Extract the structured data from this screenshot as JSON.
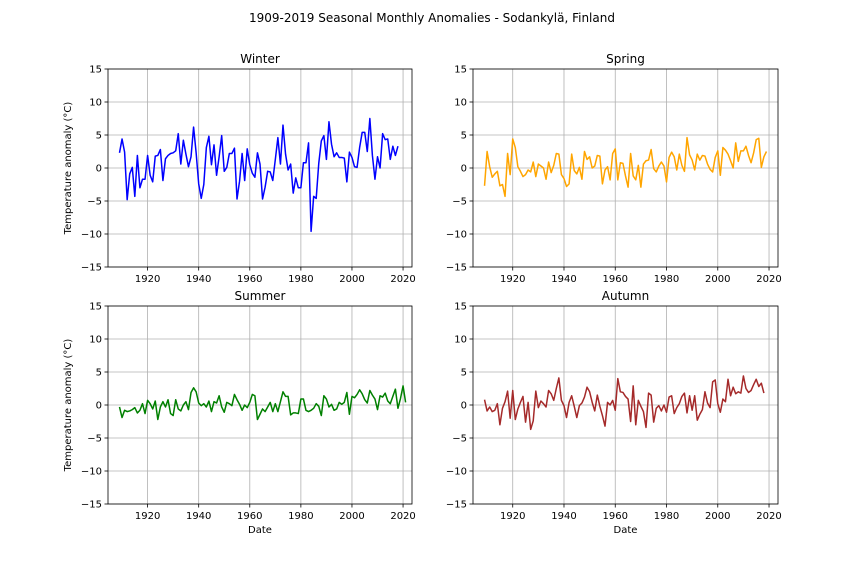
{
  "figure": {
    "suptitle": "1909-2019 Seasonal Monthly Anomalies - Sodankylä, Finland"
  },
  "chart_data": [
    {
      "type": "line",
      "title": "Winter",
      "xlabel": "",
      "ylabel": "Temperature anomaly (°C)",
      "xlim": [
        1904.5,
        2023.5
      ],
      "ylim": [
        -15,
        15
      ],
      "xticks": [
        1920,
        1940,
        1960,
        1980,
        2000,
        2020
      ],
      "yticks": [
        -15,
        -10,
        -5,
        0,
        5,
        10,
        15
      ],
      "grid": true,
      "color": "#0000ff",
      "x_start": 1909,
      "x_step": 1,
      "values": [
        2.3,
        4.4,
        2.4,
        -4.8,
        -0.9,
        0.1,
        -4.3,
        1.9,
        -3.0,
        -1.7,
        -1.7,
        1.9,
        -1.1,
        -2.1,
        1.8,
        1.9,
        2.8,
        -1.9,
        1.4,
        1.9,
        2.2,
        2.3,
        2.6,
        5.2,
        0.6,
        4.2,
        2.1,
        0.2,
        1.7,
        6.2,
        2.3,
        -2.4,
        -4.6,
        -2.5,
        3.1,
        4.8,
        0.5,
        3.5,
        -1.1,
        1.7,
        4.9,
        -0.5,
        0.1,
        2.2,
        2.2,
        3.0,
        -4.7,
        -2.0,
        2.2,
        -1.9,
        2.9,
        0.5,
        -0.8,
        -1.4,
        2.3,
        0.6,
        -4.7,
        -2.9,
        -0.5,
        -0.6,
        -1.9,
        1.3,
        4.6,
        0.6,
        6.5,
        2.1,
        -0.3,
        0.6,
        -3.8,
        -1.5,
        -3.0,
        -3.0,
        0.8,
        0.8,
        3.8,
        -9.6,
        -4.3,
        -4.6,
        0.7,
        4.1,
        4.9,
        1.3,
        7.0,
        3.6,
        1.7,
        2.3,
        1.6,
        1.6,
        1.5,
        -2.1,
        2.4,
        1.6,
        0.2,
        0.1,
        3.1,
        5.4,
        5.4,
        2.5,
        7.5,
        1.9,
        -1.7,
        1.7,
        0.0,
        5.2,
        4.3,
        4.4,
        1.3,
        3.3,
        1.9,
        3.3
      ]
    },
    {
      "type": "line",
      "title": "Spring",
      "xlabel": "",
      "ylabel": "",
      "xlim": [
        1904.5,
        2023.5
      ],
      "ylim": [
        -15,
        15
      ],
      "xticks": [
        1920,
        1940,
        1960,
        1980,
        2000,
        2020
      ],
      "yticks": [
        -15,
        -10,
        -5,
        0,
        5,
        10,
        15
      ],
      "grid": true,
      "color": "#ffa500",
      "x_start": 1909,
      "x_step": 1,
      "values": [
        -2.7,
        2.5,
        0.2,
        -1.4,
        -0.9,
        -0.5,
        -2.7,
        -2.5,
        -4.3,
        2.2,
        -1.0,
        4.4,
        3.1,
        0.2,
        -0.5,
        -1.3,
        -1.0,
        -0.3,
        -0.6,
        0.9,
        -1.3,
        0.6,
        0.3,
        0.0,
        -1.7,
        0.9,
        -0.7,
        0.4,
        2.2,
        2.1,
        -1.0,
        -1.6,
        -2.8,
        -2.4,
        2.1,
        -0.4,
        -0.9,
        0.1,
        -1.7,
        2.5,
        1.3,
        1.7,
        0.0,
        0.3,
        1.9,
        1.8,
        -2.4,
        -0.3,
        0.2,
        -1.8,
        2.2,
        2.9,
        -1.8,
        0.8,
        0.7,
        -1.2,
        -2.9,
        2.2,
        -1.2,
        -1.8,
        0.4,
        -2.9,
        0.6,
        1.1,
        1.2,
        2.8,
        -0.1,
        -0.6,
        0.3,
        0.9,
        0.3,
        -2.1,
        1.6,
        2.4,
        1.7,
        -0.3,
        2.1,
        0.4,
        -0.5,
        4.6,
        2.0,
        1.2,
        -0.3,
        2.1,
        1.2,
        1.9,
        1.8,
        0.6,
        -0.2,
        -0.6,
        1.6,
        2.6,
        -1.1,
        3.1,
        2.7,
        2.1,
        1.1,
        0.0,
        3.8,
        1.0,
        2.6,
        2.6,
        3.3,
        1.9,
        0.8,
        2.3,
        4.3,
        4.5,
        0.1,
        1.7,
        2.5
      ]
    },
    {
      "type": "line",
      "title": "Summer",
      "xlabel": "Date",
      "ylabel": "Temperature anomaly (°C)",
      "xlim": [
        1904.5,
        2023.5
      ],
      "ylim": [
        -15,
        15
      ],
      "xticks": [
        1920,
        1940,
        1960,
        1980,
        2000,
        2020
      ],
      "yticks": [
        -15,
        -10,
        -5,
        0,
        5,
        10,
        15
      ],
      "grid": true,
      "color": "#008000",
      "x_start": 1909,
      "x_step": 1,
      "values": [
        -0.3,
        -1.9,
        -0.8,
        -1.0,
        -0.9,
        -0.7,
        -0.4,
        -1.2,
        -0.8,
        0.2,
        -1.3,
        0.7,
        0.2,
        -0.6,
        0.6,
        -2.2,
        -0.3,
        0.5,
        -0.3,
        0.8,
        -1.3,
        -1.6,
        0.8,
        -0.6,
        -0.9,
        0.0,
        0.5,
        -0.7,
        1.9,
        2.6,
        2.0,
        0.3,
        -0.1,
        0.2,
        -0.3,
        0.6,
        -1.0,
        0.5,
        0.3,
        1.4,
        -0.3,
        -1.1,
        0.4,
        0.2,
        -0.1,
        1.6,
        0.8,
        0.1,
        -0.8,
        0.0,
        -0.4,
        0.4,
        1.6,
        1.4,
        -2.2,
        -1.4,
        -0.6,
        -1.0,
        -0.3,
        0.4,
        -1.0,
        0.2,
        -1.0,
        0.5,
        2.0,
        1.3,
        1.3,
        -1.5,
        -1.2,
        -1.2,
        -1.3,
        0.9,
        0.9,
        -0.8,
        -1.0,
        -0.8,
        -0.5,
        0.2,
        -0.2,
        -1.6,
        1.4,
        0.9,
        -0.3,
        0.1,
        -0.8,
        -0.6,
        0.4,
        0.1,
        0.4,
        1.9,
        -1.4,
        1.3,
        1.1,
        1.6,
        2.3,
        1.7,
        0.8,
        0.3,
        2.2,
        1.5,
        0.9,
        -0.7,
        1.4,
        1.2,
        1.8,
        0.6,
        0.2,
        1.3,
        2.4,
        -0.5,
        1.0,
        2.9,
        0.4
      ]
    },
    {
      "type": "line",
      "title": "Autumn",
      "xlabel": "Date",
      "ylabel": "",
      "xlim": [
        1904.5,
        2023.5
      ],
      "ylim": [
        -15,
        15
      ],
      "xticks": [
        1920,
        1940,
        1960,
        1980,
        2000,
        2020
      ],
      "yticks": [
        -15,
        -10,
        -5,
        0,
        5,
        10,
        15
      ],
      "grid": true,
      "color": "#a52a2a",
      "x_start": 1909,
      "x_step": 1,
      "values": [
        0.8,
        -0.9,
        -0.3,
        -1.0,
        -0.8,
        0.2,
        -3.0,
        -0.5,
        0.5,
        2.1,
        -2.0,
        2.2,
        -2.2,
        -0.6,
        0.4,
        1.3,
        -2.6,
        0.4,
        -3.7,
        -2.4,
        2.1,
        -0.4,
        0.6,
        0.2,
        -0.3,
        2.2,
        1.7,
        0.7,
        2.5,
        4.1,
        0.7,
        -0.1,
        -1.9,
        0.4,
        1.4,
        -0.2,
        -1.9,
        -0.1,
        0.3,
        1.2,
        2.7,
        2.0,
        0.4,
        -0.9,
        1.5,
        -0.2,
        -1.6,
        -3.2,
        0.4,
        0.0,
        0.7,
        -0.8,
        4.0,
        2.0,
        1.9,
        1.3,
        0.9,
        -2.5,
        2.9,
        -3.0,
        0.7,
        -0.2,
        -1.0,
        -3.4,
        1.8,
        1.5,
        -2.6,
        -0.5,
        -0.1,
        -0.9,
        0.0,
        -1.1,
        1.2,
        1.4,
        -1.3,
        -0.4,
        0.2,
        1.3,
        1.8,
        -1.2,
        1.4,
        -0.8,
        1.4,
        -2.3,
        -1.4,
        -0.7,
        2.0,
        0.3,
        -0.4,
        3.5,
        3.8,
        0.2,
        -1.1,
        0.9,
        0.5,
        3.9,
        1.4,
        2.7,
        1.7,
        2.0,
        1.8,
        4.4,
        2.5,
        1.9,
        2.2,
        3.1,
        3.9,
        2.8,
        3.3,
        1.8
      ]
    }
  ]
}
